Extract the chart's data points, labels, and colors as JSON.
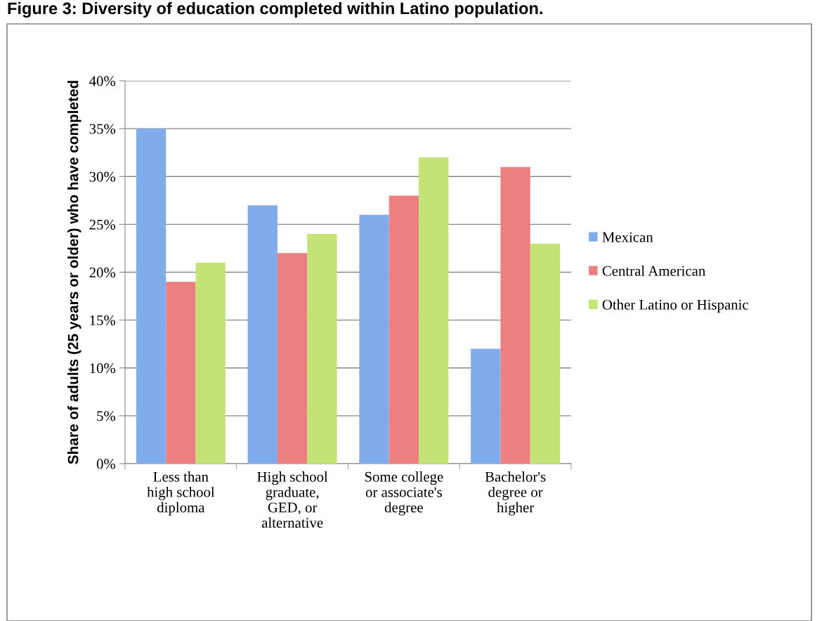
{
  "chart_data": {
    "type": "bar",
    "title": "Figure 3: Diversity of education completed within Latino population.",
    "ylabel": "Share of adults (25 years or older) who have completed",
    "categories": [
      "Less than\nhigh school\ndiploma",
      "High school\ngraduate,\nGED, or\nalternative",
      "Some college\nor associate's\ndegree",
      "Bachelor's\ndegree or\nhigher"
    ],
    "series": [
      {
        "name": "Mexican",
        "color": "#80acec",
        "values": [
          35,
          27,
          26,
          12
        ]
      },
      {
        "name": "Central American",
        "color": "#ec7f7f",
        "values": [
          19,
          22,
          28,
          31
        ]
      },
      {
        "name": "Other Latino or Hispanic",
        "color": "#c3e374",
        "values": [
          21,
          24,
          32,
          23
        ]
      }
    ],
    "ylim": [
      0,
      40
    ],
    "yticks": [
      {
        "value": 0,
        "label": "0%"
      },
      {
        "value": 5,
        "label": "5%"
      },
      {
        "value": 10,
        "label": "10%"
      },
      {
        "value": 15,
        "label": "15%"
      },
      {
        "value": 20,
        "label": "20%"
      },
      {
        "value": 25,
        "label": "25%"
      },
      {
        "value": 30,
        "label": "30%"
      },
      {
        "value": 35,
        "label": "35%"
      },
      {
        "value": 40,
        "label": "40%"
      }
    ],
    "grid": "y",
    "legend": "right"
  }
}
